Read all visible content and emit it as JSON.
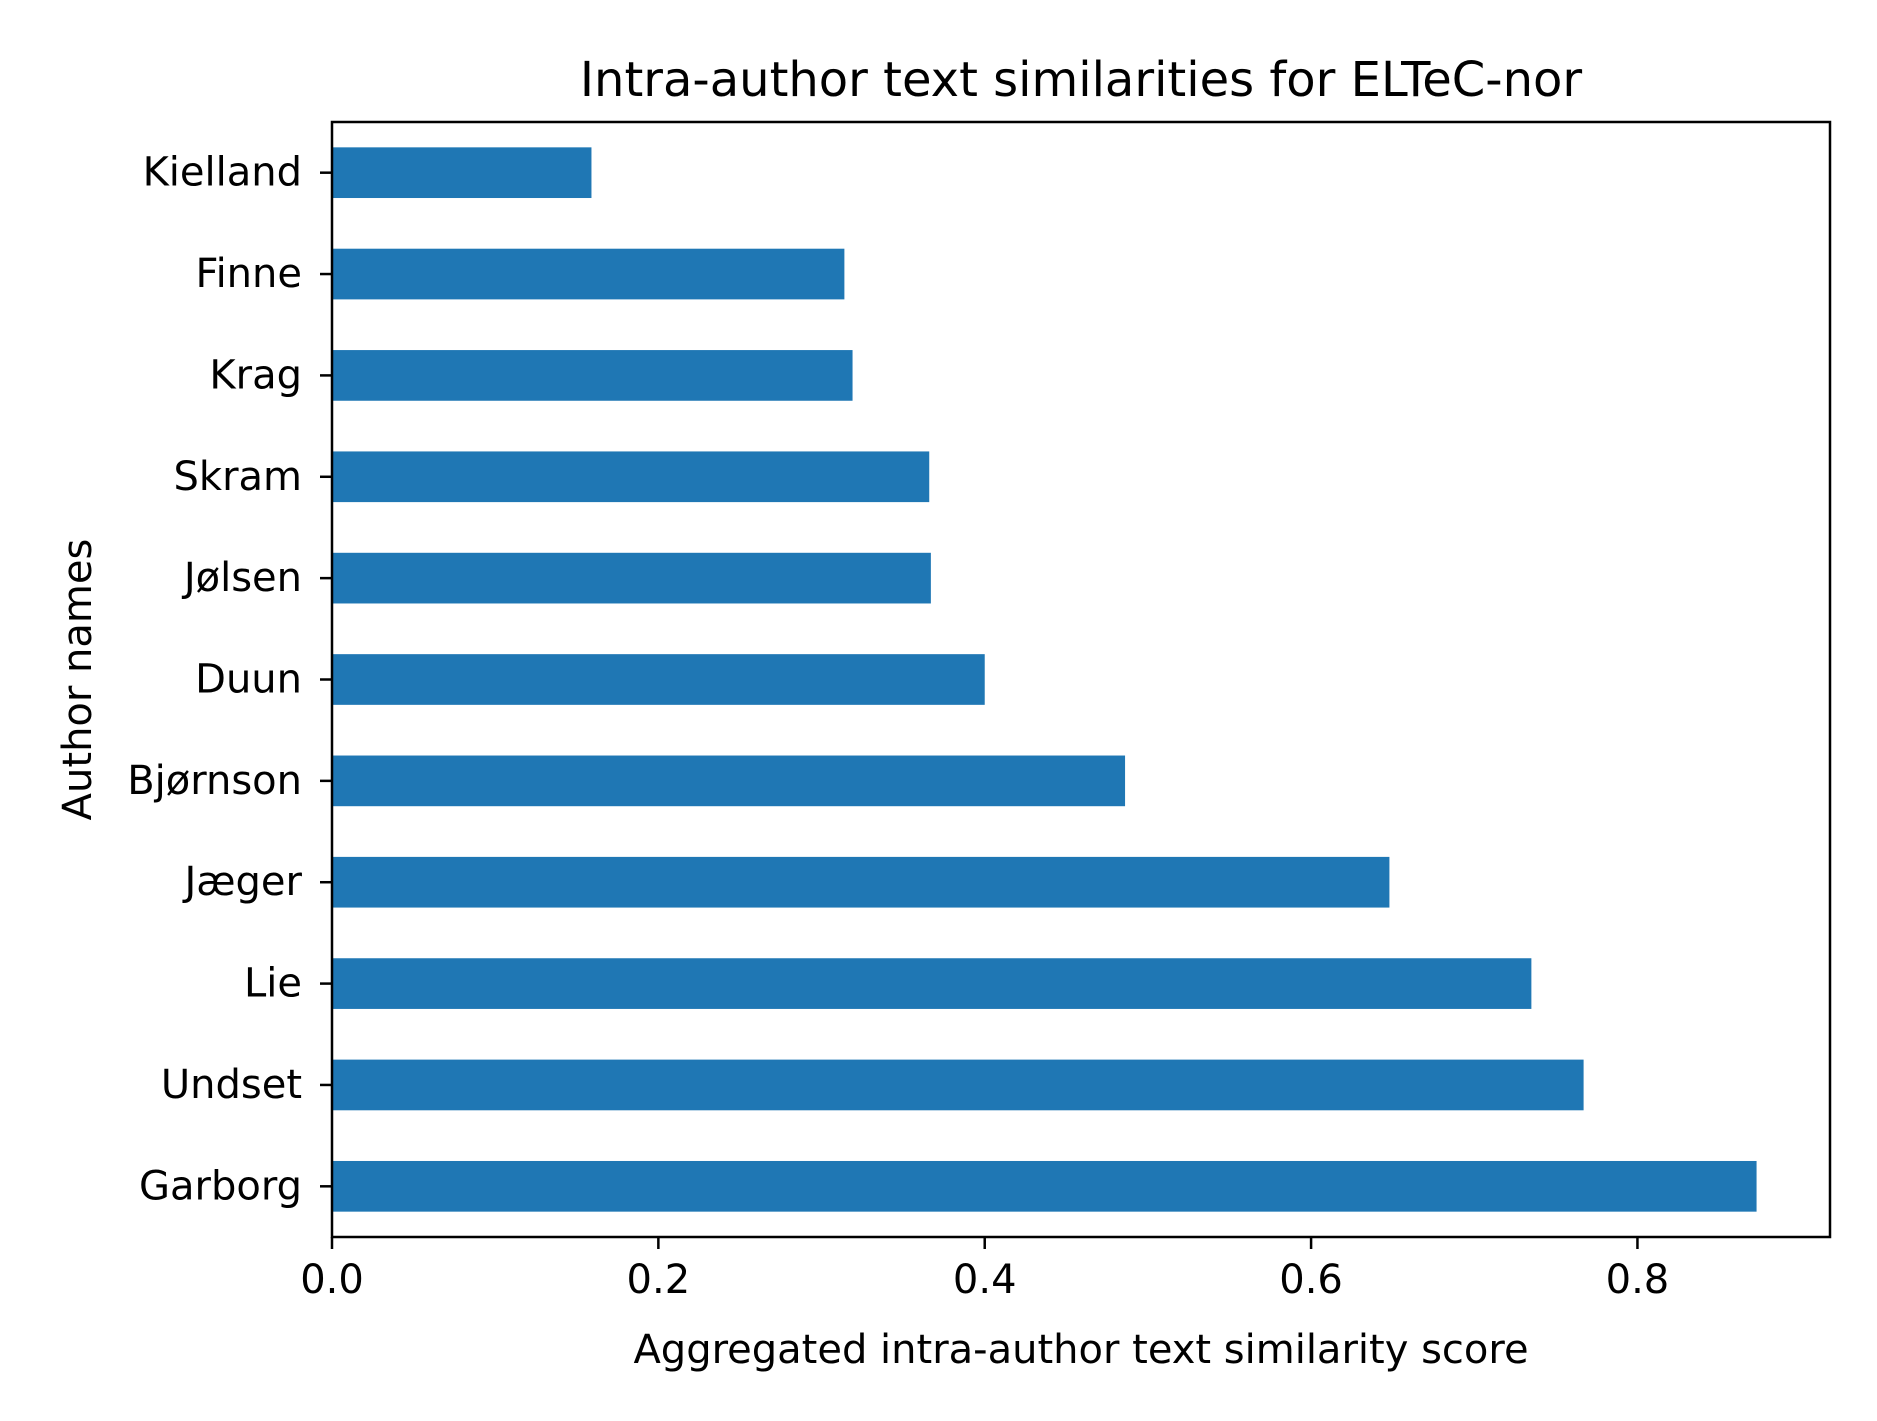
{
  "chart_data": {
    "type": "bar",
    "orientation": "horizontal",
    "title": "Intra-author text similarities for ELTeC-nor",
    "xlabel": "Aggregated intra-author text similarity score",
    "ylabel": "Author names",
    "categories": [
      "Kielland",
      "Finne",
      "Krag",
      "Skram",
      "Jølsen",
      "Duun",
      "Bjørnson",
      "Jæger",
      "Lie",
      "Undset",
      "Garborg"
    ],
    "values": [
      0.159,
      0.314,
      0.319,
      0.366,
      0.367,
      0.4,
      0.486,
      0.648,
      0.735,
      0.767,
      0.873
    ],
    "xlim": [
      0,
      0.918
    ],
    "xticks": [
      0.0,
      0.2,
      0.4,
      0.6,
      0.8
    ],
    "xtick_labels": [
      "0.0",
      "0.2",
      "0.4",
      "0.6",
      "0.8"
    ],
    "grid": false,
    "bar_color": "#1f77b4"
  }
}
